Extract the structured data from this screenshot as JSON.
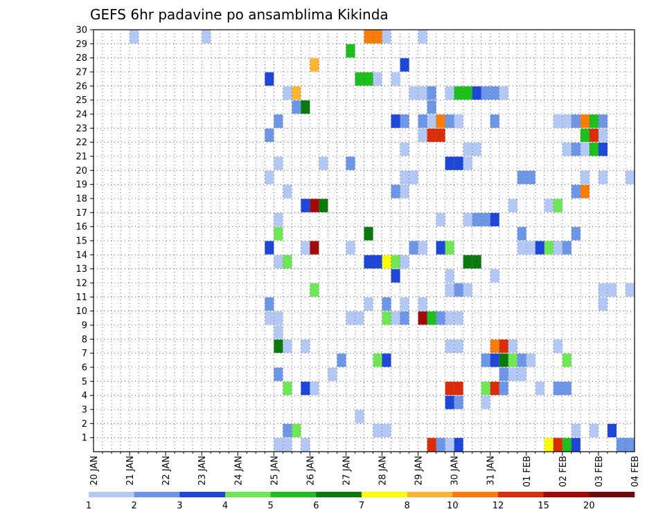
{
  "chart_data": {
    "type": "heatmap",
    "title": "GEFS 6hr padavine po ansamblima Kikinda",
    "xlabel": "",
    "ylabel": "",
    "x_ticks": [
      "20 JAN",
      "21 JAN",
      "22 JAN",
      "23 JAN",
      "24 JAN",
      "25 JAN",
      "26 JAN",
      "27 JAN",
      "28 JAN",
      "29 JAN",
      "30 JAN",
      "31 JAN",
      "01 FEB",
      "02 FEB",
      "03 FEB",
      "04 FEB"
    ],
    "y_ticks": [
      "1",
      "2",
      "3",
      "4",
      "5",
      "6",
      "7",
      "8",
      "9",
      "10",
      "11",
      "12",
      "13",
      "14",
      "15",
      "16",
      "17",
      "18",
      "19",
      "20",
      "21",
      "22",
      "23",
      "24",
      "25",
      "26",
      "27",
      "28",
      "29",
      "30"
    ],
    "xlim_days": [
      0,
      15
    ],
    "ylim": [
      0,
      30
    ],
    "time_step_hours": 6,
    "grid": true,
    "legend": {
      "position": "bottom",
      "labels": [
        "1",
        "2",
        "3",
        "4",
        "5",
        "6",
        "7",
        "8",
        "10",
        "12",
        "15",
        "20"
      ],
      "colors": [
        "#b4c8f5",
        "#6e96e6",
        "#1e46d7",
        "#6ee655",
        "#1ebe1e",
        "#0a780a",
        "#ffff00",
        "#ffb432",
        "#fa7d0a",
        "#dc2d0a",
        "#a00a0a",
        "#6e0a0a"
      ]
    },
    "levels": [
      1,
      2,
      3,
      4,
      5,
      6,
      7,
      8,
      10,
      12,
      15,
      20
    ],
    "cells": [
      [
        21.0,
        29,
        1
      ],
      [
        23.0,
        29,
        1
      ],
      [
        29.0,
        29,
        1
      ],
      [
        27.5,
        29,
        9
      ],
      [
        27.75,
        29,
        9
      ],
      [
        28.0,
        29,
        1
      ],
      [
        27.0,
        28,
        5
      ],
      [
        26.0,
        27,
        8
      ],
      [
        28.5,
        27,
        3
      ],
      [
        24.75,
        26,
        3
      ],
      [
        27.25,
        26,
        5
      ],
      [
        27.5,
        26,
        5
      ],
      [
        27.75,
        26,
        1
      ],
      [
        28.25,
        26,
        1
      ],
      [
        25.25,
        25,
        1
      ],
      [
        25.5,
        25,
        8
      ],
      [
        28.75,
        25,
        1
      ],
      [
        29.0,
        25,
        1
      ],
      [
        29.25,
        25,
        2
      ],
      [
        29.75,
        25,
        1
      ],
      [
        30.0,
        25,
        5
      ],
      [
        30.25,
        25,
        5
      ],
      [
        30.5,
        25,
        3
      ],
      [
        30.75,
        25,
        2
      ],
      [
        31.0,
        25,
        2
      ],
      [
        31.25,
        25,
        1
      ],
      [
        25.5,
        24,
        2
      ],
      [
        25.75,
        24,
        6
      ],
      [
        29.25,
        24,
        2
      ],
      [
        25.0,
        23,
        2
      ],
      [
        28.25,
        23,
        3
      ],
      [
        28.5,
        23,
        2
      ],
      [
        29.0,
        23,
        2
      ],
      [
        29.25,
        23,
        1
      ],
      [
        29.5,
        23,
        9
      ],
      [
        29.75,
        23,
        2
      ],
      [
        30.0,
        23,
        1
      ],
      [
        31.0,
        23,
        2
      ],
      [
        32.75,
        23,
        1
      ],
      [
        33.0,
        23,
        1
      ],
      [
        33.25,
        23,
        2
      ],
      [
        33.5,
        23,
        9
      ],
      [
        33.75,
        23,
        5
      ],
      [
        34.0,
        23,
        2
      ],
      [
        24.75,
        22,
        2
      ],
      [
        29.0,
        22,
        1
      ],
      [
        29.25,
        22,
        10
      ],
      [
        29.5,
        22,
        10
      ],
      [
        33.5,
        22,
        5
      ],
      [
        33.75,
        22,
        10
      ],
      [
        34.0,
        22,
        1
      ],
      [
        28.5,
        21,
        1
      ],
      [
        30.25,
        21,
        1
      ],
      [
        30.5,
        21,
        1
      ],
      [
        33.0,
        21,
        1
      ],
      [
        33.25,
        21,
        2
      ],
      [
        33.5,
        21,
        1
      ],
      [
        33.75,
        21,
        5
      ],
      [
        34.0,
        21,
        3
      ],
      [
        25.0,
        20,
        1
      ],
      [
        26.25,
        20,
        1
      ],
      [
        27.0,
        20,
        2
      ],
      [
        29.75,
        20,
        3
      ],
      [
        30.0,
        20,
        3
      ],
      [
        30.25,
        20,
        1
      ],
      [
        24.75,
        19,
        1
      ],
      [
        28.5,
        19,
        1
      ],
      [
        28.75,
        19,
        1
      ],
      [
        31.75,
        19,
        2
      ],
      [
        32.0,
        19,
        2
      ],
      [
        33.5,
        19,
        1
      ],
      [
        34.0,
        19,
        1
      ],
      [
        34.75,
        19,
        1
      ],
      [
        25.25,
        18,
        1
      ],
      [
        28.25,
        18,
        2
      ],
      [
        28.5,
        18,
        1
      ],
      [
        33.25,
        18,
        2
      ],
      [
        33.5,
        18,
        9
      ],
      [
        25.75,
        17,
        3
      ],
      [
        26.0,
        17,
        11
      ],
      [
        26.25,
        17,
        6
      ],
      [
        31.5,
        17,
        1
      ],
      [
        32.5,
        17,
        1
      ],
      [
        32.75,
        17,
        4
      ],
      [
        25.0,
        16,
        1
      ],
      [
        29.5,
        16,
        1
      ],
      [
        30.25,
        16,
        1
      ],
      [
        30.5,
        16,
        2
      ],
      [
        30.75,
        16,
        2
      ],
      [
        31.0,
        16,
        3
      ],
      [
        25.0,
        15,
        4
      ],
      [
        27.5,
        15,
        6
      ],
      [
        31.75,
        15,
        2
      ],
      [
        33.25,
        15,
        2
      ],
      [
        24.75,
        14,
        3
      ],
      [
        25.75,
        14,
        1
      ],
      [
        26.0,
        14,
        11
      ],
      [
        27.0,
        14,
        1
      ],
      [
        28.75,
        14,
        2
      ],
      [
        29.0,
        14,
        1
      ],
      [
        29.5,
        14,
        3
      ],
      [
        29.75,
        14,
        4
      ],
      [
        31.75,
        14,
        1
      ],
      [
        32.0,
        14,
        1
      ],
      [
        32.25,
        14,
        3
      ],
      [
        32.5,
        14,
        4
      ],
      [
        32.75,
        14,
        1
      ],
      [
        33.0,
        14,
        2
      ],
      [
        25.0,
        13,
        1
      ],
      [
        25.25,
        13,
        4
      ],
      [
        27.5,
        13,
        3
      ],
      [
        27.75,
        13,
        3
      ],
      [
        28.0,
        13,
        7
      ],
      [
        28.25,
        13,
        4
      ],
      [
        28.5,
        13,
        1
      ],
      [
        30.25,
        13,
        6
      ],
      [
        30.5,
        13,
        6
      ],
      [
        28.25,
        12,
        3
      ],
      [
        29.75,
        12,
        1
      ],
      [
        31.0,
        12,
        1
      ],
      [
        26.0,
        11,
        4
      ],
      [
        29.75,
        11,
        1
      ],
      [
        30.0,
        11,
        2
      ],
      [
        30.25,
        11,
        1
      ],
      [
        34.0,
        11,
        1
      ],
      [
        34.25,
        11,
        1
      ],
      [
        34.75,
        11,
        1
      ],
      [
        24.75,
        10,
        2
      ],
      [
        27.5,
        10,
        1
      ],
      [
        28.0,
        10,
        2
      ],
      [
        28.5,
        10,
        1
      ],
      [
        29.0,
        10,
        1
      ],
      [
        34.0,
        10,
        1
      ],
      [
        24.75,
        9,
        1
      ],
      [
        25.0,
        9,
        1
      ],
      [
        27.0,
        9,
        1
      ],
      [
        27.25,
        9,
        1
      ],
      [
        28.0,
        9,
        4
      ],
      [
        28.25,
        9,
        1
      ],
      [
        28.5,
        9,
        2
      ],
      [
        29.0,
        9,
        11
      ],
      [
        29.25,
        9,
        5
      ],
      [
        29.5,
        9,
        2
      ],
      [
        29.75,
        9,
        1
      ],
      [
        30.0,
        9,
        1
      ],
      [
        25.0,
        8,
        1
      ],
      [
        25.0,
        7,
        6
      ],
      [
        25.25,
        7,
        1
      ],
      [
        25.75,
        7,
        1
      ],
      [
        29.75,
        7,
        1
      ],
      [
        30.0,
        7,
        1
      ],
      [
        31.0,
        7,
        9
      ],
      [
        31.25,
        7,
        10
      ],
      [
        31.5,
        7,
        1
      ],
      [
        32.75,
        7,
        1
      ],
      [
        26.75,
        6,
        2
      ],
      [
        27.75,
        6,
        4
      ],
      [
        28.0,
        6,
        3
      ],
      [
        30.75,
        6,
        2
      ],
      [
        31.0,
        6,
        3
      ],
      [
        31.25,
        6,
        6
      ],
      [
        31.5,
        6,
        4
      ],
      [
        31.75,
        6,
        2
      ],
      [
        32.0,
        6,
        1
      ],
      [
        33.0,
        6,
        4
      ],
      [
        25.0,
        5,
        2
      ],
      [
        26.5,
        5,
        1
      ],
      [
        31.25,
        5,
        2
      ],
      [
        31.5,
        5,
        1
      ],
      [
        31.75,
        5,
        1
      ],
      [
        25.25,
        4,
        4
      ],
      [
        25.75,
        4,
        3
      ],
      [
        26.0,
        4,
        1
      ],
      [
        29.75,
        4,
        10
      ],
      [
        30.0,
        4,
        10
      ],
      [
        30.75,
        4,
        4
      ],
      [
        31.0,
        4,
        10
      ],
      [
        31.25,
        4,
        2
      ],
      [
        32.25,
        4,
        1
      ],
      [
        32.75,
        4,
        2
      ],
      [
        33.0,
        4,
        2
      ],
      [
        29.75,
        3,
        3
      ],
      [
        30.0,
        3,
        2
      ],
      [
        30.75,
        3,
        1
      ],
      [
        27.25,
        2,
        1
      ],
      [
        25.25,
        1,
        2
      ],
      [
        25.5,
        1,
        4
      ],
      [
        27.75,
        1,
        1
      ],
      [
        28.0,
        1,
        1
      ],
      [
        33.25,
        1,
        1
      ],
      [
        33.75,
        1,
        1
      ],
      [
        34.25,
        1,
        3
      ],
      [
        25.0,
        0,
        1
      ],
      [
        25.25,
        0,
        1
      ],
      [
        25.75,
        0,
        1
      ],
      [
        29.25,
        0,
        10
      ],
      [
        29.5,
        0,
        2
      ],
      [
        29.75,
        0,
        1
      ],
      [
        30.0,
        0,
        3
      ],
      [
        32.5,
        0,
        7
      ],
      [
        32.75,
        0,
        10
      ],
      [
        33.0,
        0,
        5
      ],
      [
        33.25,
        0,
        3
      ],
      [
        34.5,
        0,
        2
      ],
      [
        34.75,
        0,
        2
      ]
    ]
  }
}
